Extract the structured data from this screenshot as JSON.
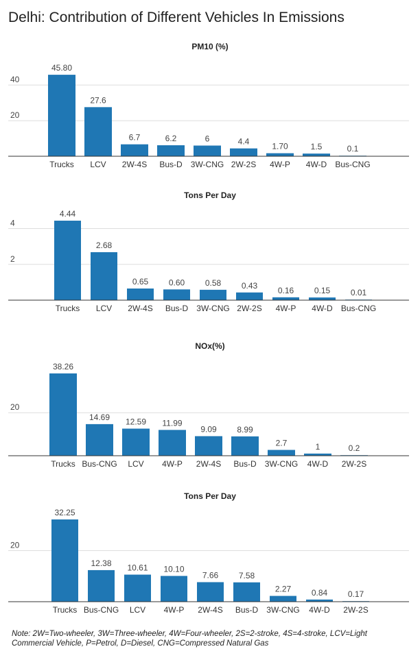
{
  "main_title": "Delhi: Contribution of Different Vehicles In Emissions",
  "note": "Note: 2W=Two-wheeler, 3W=Three-wheeler, 4W=Four-wheeler, 2S=2-stroke, 4S=4-stroke, LCV=Light Commercial Vehicle, P=Petrol, D=Diesel, CNG=Compressed Natural Gas",
  "colors": {
    "bar": "#1f77b4",
    "grid": "#dddddd",
    "axis": "#333333"
  },
  "chart_data": [
    {
      "type": "bar",
      "title": "PM10 (%)",
      "categories": [
        "Trucks",
        "LCV",
        "2W-4S",
        "Bus-D",
        "3W-CNG",
        "2W-2S",
        "4W-P",
        "4W-D",
        "Bus-CNG"
      ],
      "values": [
        45.8,
        27.6,
        6.7,
        6.2,
        6,
        4.4,
        1.7,
        1.5,
        0.1
      ],
      "labels": [
        "45.80",
        "27.6",
        "6.7",
        "6.2",
        "6",
        "4.4",
        "1.70",
        "1.5",
        "0.1"
      ],
      "yticks": [
        20,
        40
      ],
      "ylim": [
        0,
        52
      ],
      "grid": true
    },
    {
      "type": "bar",
      "title": "Tons Per Day",
      "categories": [
        "Trucks",
        "LCV",
        "2W-4S",
        "Bus-D",
        "3W-CNG",
        "2W-2S",
        "4W-P",
        "4W-D",
        "Bus-CNG"
      ],
      "values": [
        4.44,
        2.68,
        0.65,
        0.6,
        0.58,
        0.43,
        0.16,
        0.15,
        0.01
      ],
      "labels": [
        "4.44",
        "2.68",
        "0.65",
        "0.60",
        "0.58",
        "0.43",
        "0.16",
        "0.15",
        "0.01"
      ],
      "yticks": [
        2,
        4
      ],
      "ylim": [
        0,
        4.9
      ],
      "grid": true
    },
    {
      "type": "bar",
      "title": "NOx(%)",
      "categories": [
        "Trucks",
        "Bus-CNG",
        "LCV",
        "4W-P",
        "2W-4S",
        "Bus-D",
        "3W-CNG",
        "4W-D",
        "2W-2S"
      ],
      "values": [
        38.26,
        14.69,
        12.59,
        11.99,
        9.09,
        8.99,
        2.7,
        1,
        0.2
      ],
      "labels": [
        "38.26",
        "14.69",
        "12.59",
        "11.99",
        "9.09",
        "8.99",
        "2.7",
        "1",
        "0.2"
      ],
      "yticks": [
        20
      ],
      "ylim": [
        0,
        43
      ],
      "grid": true
    },
    {
      "type": "bar",
      "title": "Tons Per Day",
      "categories": [
        "Trucks",
        "Bus-CNG",
        "LCV",
        "4W-P",
        "2W-4S",
        "Bus-D",
        "3W-CNG",
        "4W-D",
        "2W-2S"
      ],
      "values": [
        32.25,
        12.38,
        10.61,
        10.1,
        7.66,
        7.58,
        2.27,
        0.84,
        0.17
      ],
      "labels": [
        "32.25",
        "12.38",
        "10.61",
        "10.10",
        "7.66",
        "7.58",
        "2.27",
        "0.84",
        "0.17"
      ],
      "yticks": [
        20
      ],
      "ylim": [
        0,
        36
      ],
      "grid": true
    }
  ]
}
